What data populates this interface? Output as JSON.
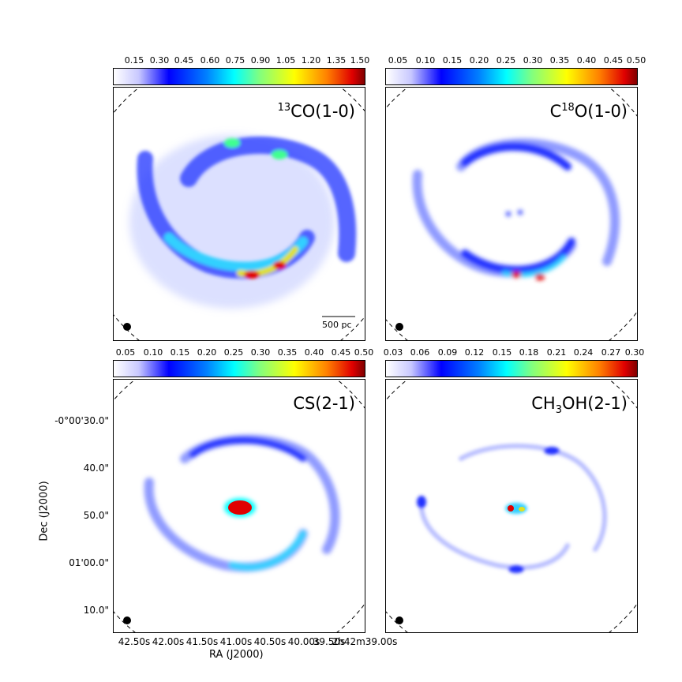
{
  "colorbars": [
    {
      "ticks": [
        "0.15",
        "0.30",
        "0.45",
        "0.60",
        "0.75",
        "0.90",
        "1.05",
        "1.20",
        "1.35",
        "1.50"
      ]
    },
    {
      "ticks": [
        "0.05",
        "0.10",
        "0.15",
        "0.20",
        "0.25",
        "0.30",
        "0.35",
        "0.40",
        "0.45",
        "0.50"
      ]
    },
    {
      "ticks": [
        "0.05",
        "0.10",
        "0.15",
        "0.20",
        "0.25",
        "0.30",
        "0.35",
        "0.40",
        "0.45",
        "0.50"
      ]
    },
    {
      "ticks": [
        "0.03",
        "0.06",
        "0.09",
        "0.12",
        "0.15",
        "0.18",
        "0.21",
        "0.24",
        "0.27",
        "0.30"
      ]
    }
  ],
  "panels": [
    {
      "label_sup": "13",
      "label_main": "CO(1-0)"
    },
    {
      "label_pre": "C",
      "label_sup": "18",
      "label_main": "O(1-0)"
    },
    {
      "label_main": "CS(2-1)"
    },
    {
      "label_pre": "CH",
      "label_sub": "3",
      "label_main": "OH(2-1)"
    }
  ],
  "scale_bar_label": "500 pc",
  "y_axis": {
    "title": "Dec (J2000)",
    "ticks": [
      "-0°00'30.0\"",
      "40.0\"",
      "50.0\"",
      "01'00.0\"",
      "10.0\""
    ]
  },
  "x_axis": {
    "title": "RA (J2000)",
    "ticks": [
      "42.50s",
      "42.00s",
      "41.50s",
      "41.00s",
      "40.50s",
      "40.00s",
      "39.50s",
      "2h42m39.00s"
    ]
  },
  "colors": {
    "ring_blue": "#2030ff",
    "core_red": "#e00000",
    "frame": "#000000"
  }
}
